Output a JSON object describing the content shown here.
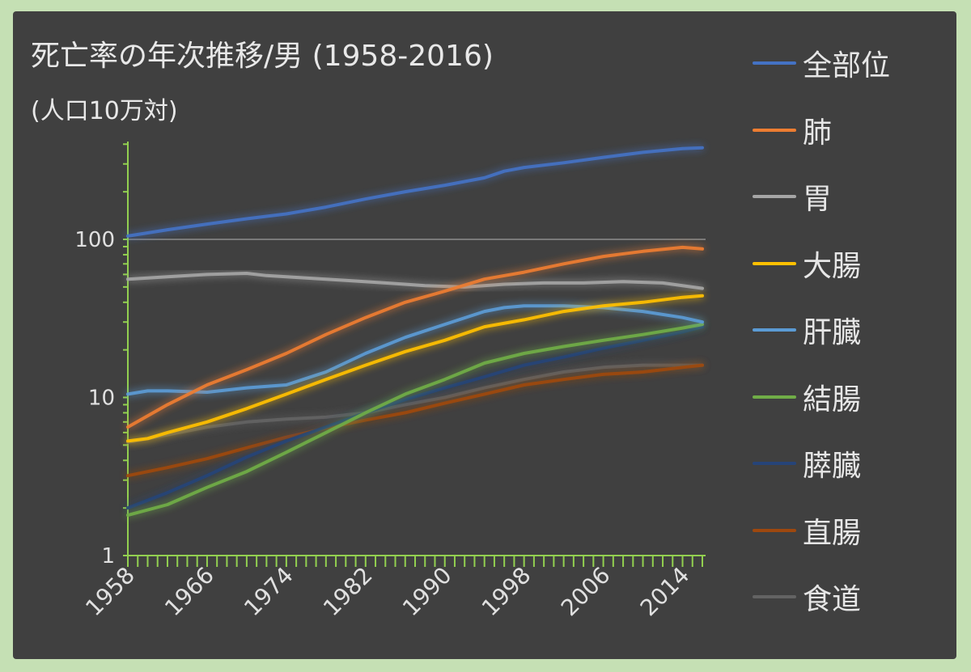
{
  "chart_data": {
    "type": "line",
    "title": "死亡率の年次推移/男 (1958-2016)",
    "subtitle": "(人口10万対)",
    "y_scale": "log",
    "ylim": [
      1,
      500
    ],
    "y_ticks": [
      {
        "value": 1,
        "label": "1"
      },
      {
        "value": 10,
        "label": "10"
      },
      {
        "value": 100,
        "label": "100"
      }
    ],
    "xlim": [
      1958,
      2016
    ],
    "x_tick_labels": [
      "1958",
      "1966",
      "1974",
      "1982",
      "1990",
      "1998",
      "2006",
      "2014"
    ],
    "gridlines": [
      100
    ],
    "legend_position": "right",
    "series": [
      {
        "name": "全部位",
        "color": "#4472c4",
        "points": [
          [
            1958,
            105
          ],
          [
            1962,
            115
          ],
          [
            1966,
            125
          ],
          [
            1970,
            135
          ],
          [
            1974,
            145
          ],
          [
            1978,
            160
          ],
          [
            1982,
            180
          ],
          [
            1986,
            200
          ],
          [
            1990,
            220
          ],
          [
            1994,
            245
          ],
          [
            1996,
            270
          ],
          [
            1998,
            285
          ],
          [
            2002,
            305
          ],
          [
            2006,
            330
          ],
          [
            2010,
            355
          ],
          [
            2014,
            375
          ],
          [
            2016,
            380
          ]
        ]
      },
      {
        "name": "肺",
        "color": "#ed7d31",
        "points": [
          [
            1958,
            6.5
          ],
          [
            1962,
            9
          ],
          [
            1966,
            12
          ],
          [
            1970,
            15
          ],
          [
            1974,
            19
          ],
          [
            1978,
            25
          ],
          [
            1982,
            32
          ],
          [
            1986,
            40
          ],
          [
            1990,
            47
          ],
          [
            1994,
            56
          ],
          [
            1998,
            62
          ],
          [
            2002,
            70
          ],
          [
            2006,
            78
          ],
          [
            2010,
            84
          ],
          [
            2014,
            89
          ],
          [
            2016,
            87
          ]
        ]
      },
      {
        "name": "胃",
        "color": "#a5a5a5",
        "points": [
          [
            1958,
            56
          ],
          [
            1962,
            58
          ],
          [
            1966,
            60
          ],
          [
            1970,
            61
          ],
          [
            1972,
            59
          ],
          [
            1976,
            57
          ],
          [
            1980,
            55
          ],
          [
            1984,
            53
          ],
          [
            1988,
            51
          ],
          [
            1992,
            50
          ],
          [
            1996,
            52
          ],
          [
            2000,
            53
          ],
          [
            2004,
            53
          ],
          [
            2008,
            54
          ],
          [
            2012,
            53
          ],
          [
            2016,
            49
          ]
        ]
      },
      {
        "name": "大腸",
        "color": "#ffc000",
        "points": [
          [
            1958,
            5.3
          ],
          [
            1960,
            5.5
          ],
          [
            1962,
            6
          ],
          [
            1966,
            7
          ],
          [
            1970,
            8.5
          ],
          [
            1974,
            10.5
          ],
          [
            1978,
            13
          ],
          [
            1982,
            16
          ],
          [
            1986,
            19.5
          ],
          [
            1990,
            23
          ],
          [
            1994,
            28
          ],
          [
            1998,
            31
          ],
          [
            2002,
            35
          ],
          [
            2006,
            38
          ],
          [
            2010,
            40
          ],
          [
            2014,
            43
          ],
          [
            2016,
            44
          ]
        ]
      },
      {
        "name": "肝臓",
        "color": "#5b9bd5",
        "points": [
          [
            1958,
            10.5
          ],
          [
            1960,
            11
          ],
          [
            1962,
            11
          ],
          [
            1966,
            10.8
          ],
          [
            1970,
            11.5
          ],
          [
            1974,
            12
          ],
          [
            1978,
            14.5
          ],
          [
            1982,
            19
          ],
          [
            1986,
            24
          ],
          [
            1990,
            29
          ],
          [
            1994,
            35
          ],
          [
            1996,
            37
          ],
          [
            1998,
            38
          ],
          [
            2002,
            38
          ],
          [
            2006,
            37
          ],
          [
            2010,
            35
          ],
          [
            2014,
            32
          ],
          [
            2016,
            30
          ]
        ]
      },
      {
        "name": "結腸",
        "color": "#70ad47",
        "points": [
          [
            1958,
            1.8
          ],
          [
            1962,
            2.1
          ],
          [
            1966,
            2.7
          ],
          [
            1970,
            3.4
          ],
          [
            1974,
            4.5
          ],
          [
            1978,
            6
          ],
          [
            1982,
            8
          ],
          [
            1986,
            10.5
          ],
          [
            1990,
            13
          ],
          [
            1994,
            16.5
          ],
          [
            1998,
            19
          ],
          [
            2002,
            21
          ],
          [
            2006,
            23
          ],
          [
            2010,
            25
          ],
          [
            2014,
            27.5
          ],
          [
            2016,
            29
          ]
        ]
      },
      {
        "name": "膵臓",
        "color": "#264478",
        "points": [
          [
            1958,
            2
          ],
          [
            1962,
            2.5
          ],
          [
            1966,
            3.2
          ],
          [
            1970,
            4.2
          ],
          [
            1974,
            5.3
          ],
          [
            1978,
            6.5
          ],
          [
            1982,
            8
          ],
          [
            1986,
            9.7
          ],
          [
            1990,
            11.5
          ],
          [
            1994,
            13.5
          ],
          [
            1998,
            16
          ],
          [
            2002,
            18
          ],
          [
            2006,
            20.5
          ],
          [
            2010,
            23
          ],
          [
            2014,
            26
          ],
          [
            2016,
            28
          ]
        ]
      },
      {
        "name": "直腸",
        "color": "#9e480e",
        "points": [
          [
            1958,
            3.2
          ],
          [
            1962,
            3.6
          ],
          [
            1966,
            4.1
          ],
          [
            1970,
            4.8
          ],
          [
            1974,
            5.6
          ],
          [
            1978,
            6.4
          ],
          [
            1982,
            7.2
          ],
          [
            1986,
            8
          ],
          [
            1990,
            9.2
          ],
          [
            1994,
            10.5
          ],
          [
            1998,
            12
          ],
          [
            2002,
            13
          ],
          [
            2006,
            14
          ],
          [
            2010,
            14.5
          ],
          [
            2014,
            15.5
          ],
          [
            2016,
            16
          ]
        ]
      },
      {
        "name": "食道",
        "color": "#636363",
        "points": [
          [
            1958,
            5.2
          ],
          [
            1962,
            5.8
          ],
          [
            1966,
            6.5
          ],
          [
            1970,
            7
          ],
          [
            1974,
            7.3
          ],
          [
            1978,
            7.5
          ],
          [
            1982,
            8
          ],
          [
            1986,
            9
          ],
          [
            1990,
            10
          ],
          [
            1994,
            11.5
          ],
          [
            1998,
            13
          ],
          [
            2002,
            14.5
          ],
          [
            2006,
            15.5
          ],
          [
            2010,
            16
          ],
          [
            2014,
            16
          ],
          [
            2016,
            16
          ]
        ]
      }
    ]
  }
}
